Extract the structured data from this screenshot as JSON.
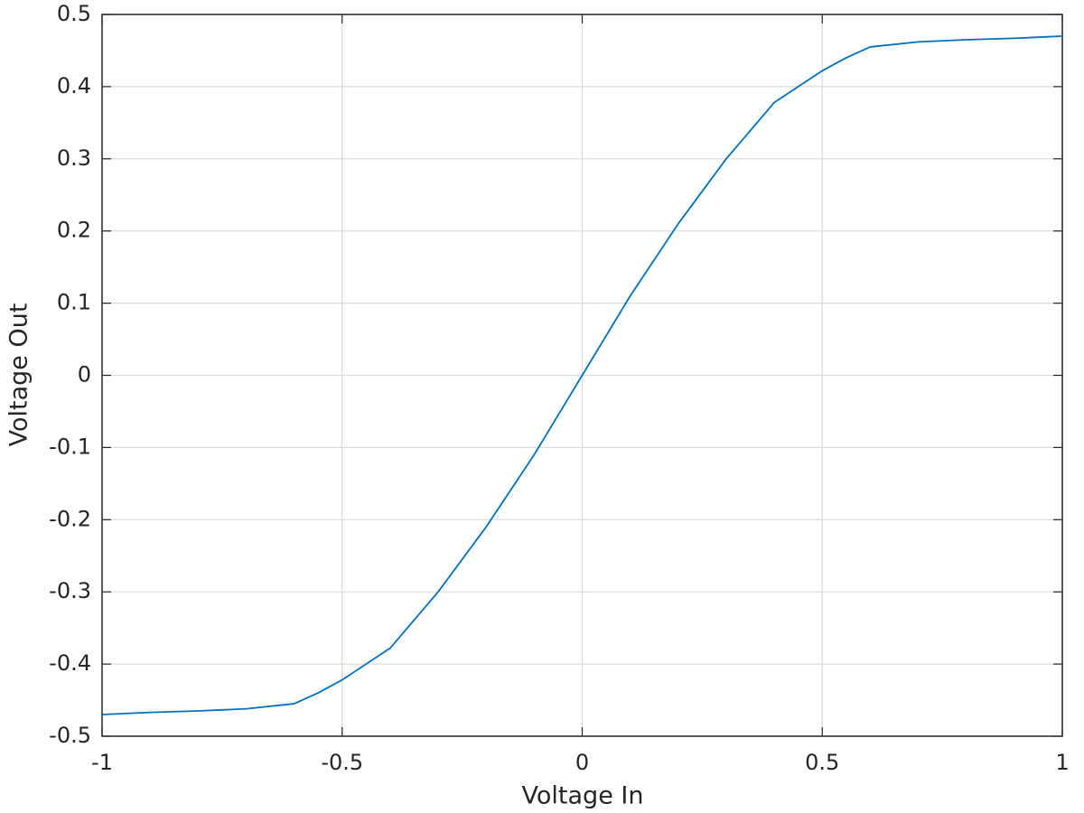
{
  "chart_data": {
    "type": "line",
    "xlabel": "Voltage In",
    "ylabel": "Voltage Out",
    "x": [
      -1,
      -0.9,
      -0.8,
      -0.7,
      -0.6,
      -0.55,
      -0.5,
      -0.4,
      -0.3,
      -0.2,
      -0.1,
      0,
      0.1,
      0.2,
      0.3,
      0.4,
      0.5,
      0.55,
      0.6,
      0.7,
      0.8,
      0.9,
      1
    ],
    "series": [
      {
        "color": "#0072bd",
        "values": [
          -0.47,
          -0.467,
          -0.465,
          -0.462,
          -0.455,
          -0.44,
          -0.422,
          -0.378,
          -0.3,
          -0.21,
          -0.11,
          0,
          0.11,
          0.21,
          0.3,
          0.378,
          0.422,
          0.44,
          0.455,
          0.462,
          0.465,
          0.467,
          0.47
        ]
      }
    ],
    "xlim": [
      -1,
      1
    ],
    "xticks": [
      -1,
      -0.5,
      0,
      0.5,
      1
    ],
    "ylim": [
      -0.5,
      0.5
    ],
    "yticks": [
      -0.5,
      -0.4,
      -0.3,
      -0.2,
      -0.1,
      0,
      0.1,
      0.2,
      0.3,
      0.4,
      0.5
    ],
    "grid": true
  }
}
